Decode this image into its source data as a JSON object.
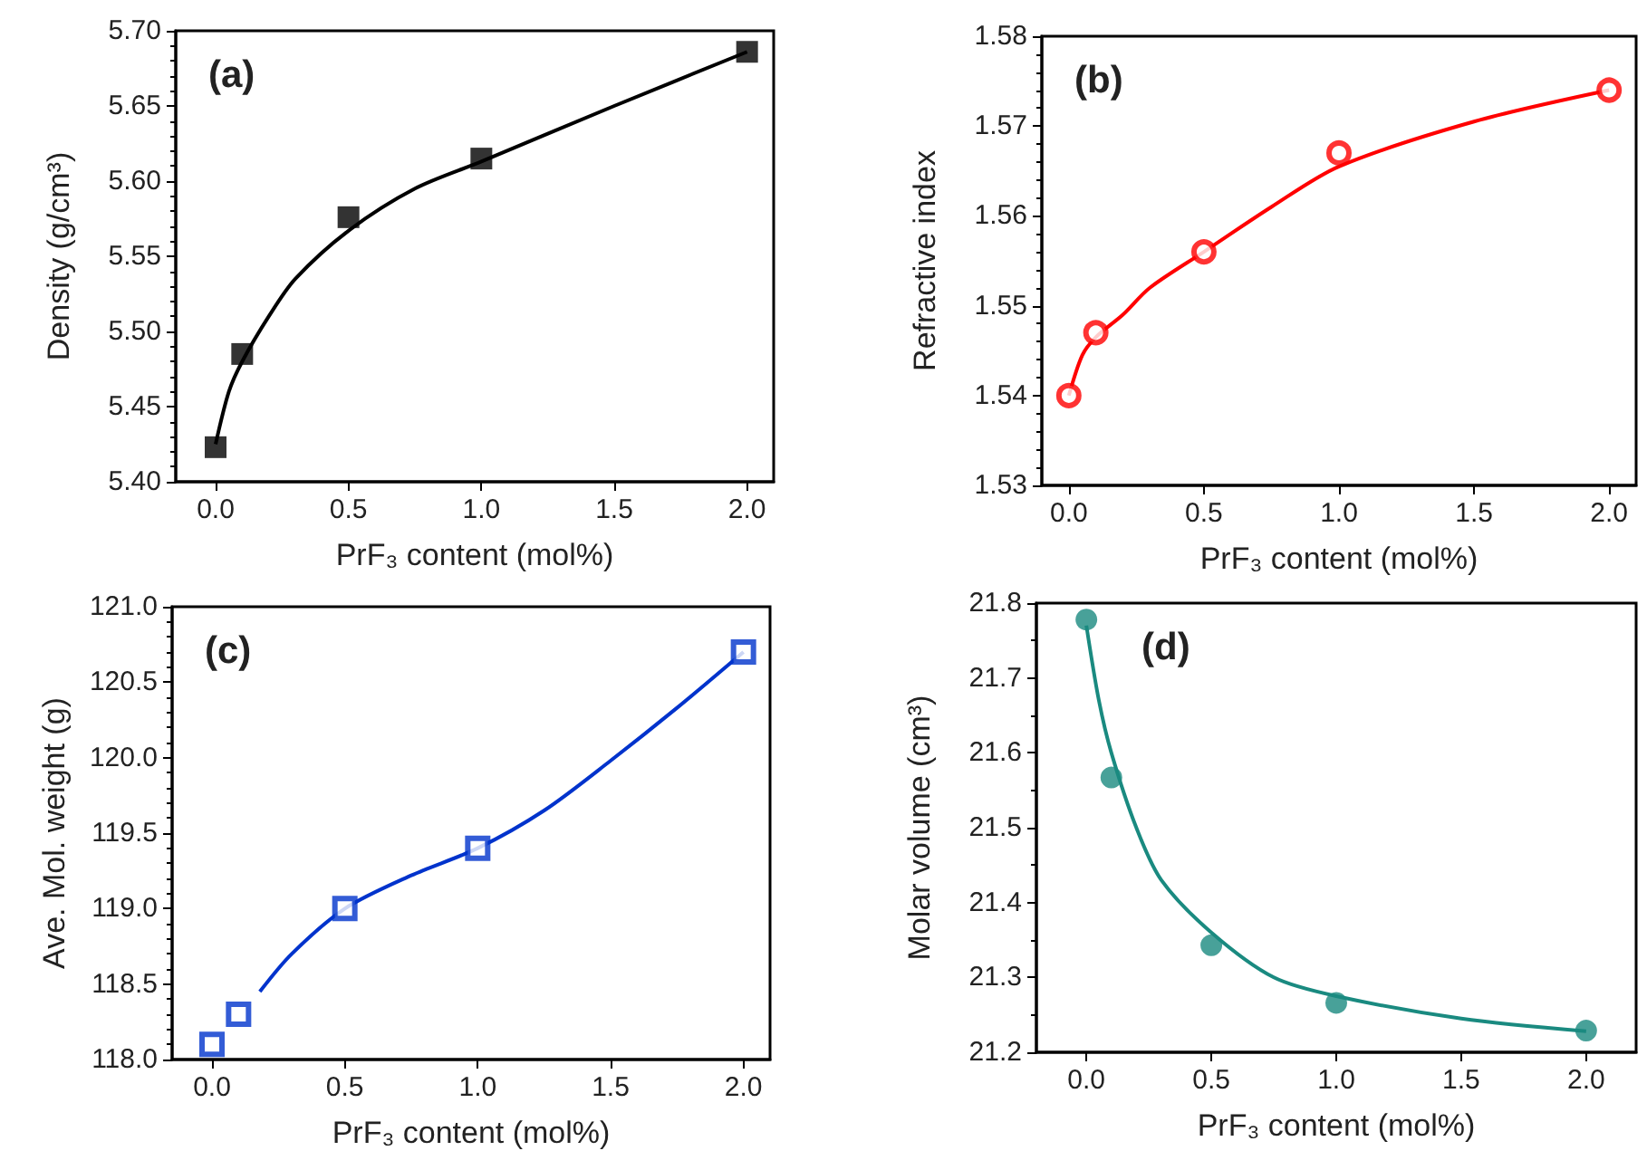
{
  "chart_data": [
    {
      "type": "scatter",
      "xlabel": "PrF₃ content (mol%)",
      "ylabel": "Density (g/cm³)",
      "annotations": [
        "(a)"
      ],
      "marker": "square",
      "grid": false,
      "xlim": [
        -0.15,
        2.1
      ],
      "xticks": [
        {
          "value": 0,
          "label": "0.0"
        },
        {
          "value": 0.5,
          "label": "0.5"
        },
        {
          "value": 1,
          "label": "1.0"
        },
        {
          "value": 1.5,
          "label": "1.5"
        },
        {
          "value": 2,
          "label": "2.0"
        }
      ],
      "ylim": [
        5.4,
        5.7
      ],
      "yticks": [
        {
          "value": 5.4,
          "label": "5.40"
        },
        {
          "value": 5.45,
          "label": "5.45"
        },
        {
          "value": 5.5,
          "label": "5.50"
        },
        {
          "value": 5.55,
          "label": "5.55"
        },
        {
          "value": 5.6,
          "label": "5.60"
        },
        {
          "value": 5.65,
          "label": "5.65"
        },
        {
          "value": 5.7,
          "label": "5.70"
        }
      ],
      "series": [
        {
          "color": "#000000",
          "x": [
            0,
            0.1,
            0.5,
            1,
            2
          ],
          "values": [
            5.423,
            5.485,
            5.576,
            5.615,
            5.686
          ]
        },
        {
          "type": "line",
          "marker": "none",
          "color": "#000000",
          "x": [
            0,
            0.05,
            0.1,
            0.2,
            0.3,
            0.5,
            0.75,
            1,
            1.5,
            2
          ],
          "values": [
            5.425,
            5.46,
            5.48,
            5.51,
            5.535,
            5.567,
            5.595,
            5.613,
            5.65,
            5.686
          ]
        }
      ]
    },
    {
      "type": "scatter",
      "xlabel": "PrF₃ content (mol%)",
      "ylabel": "Refractive index",
      "annotations": [
        "(b)"
      ],
      "marker": "circle",
      "grid": false,
      "xlim": [
        -0.1,
        2.1
      ],
      "xticks": [
        {
          "value": 0,
          "label": "0.0"
        },
        {
          "value": 0.5,
          "label": "0.5"
        },
        {
          "value": 1,
          "label": "1.0"
        },
        {
          "value": 1.5,
          "label": "1.5"
        },
        {
          "value": 2,
          "label": "2.0"
        }
      ],
      "ylim": [
        1.53,
        1.58
      ],
      "yticks": [
        1.53,
        1.54,
        1.55,
        1.56,
        1.57,
        1.58
      ],
      "series": [
        {
          "color": "#ff0000",
          "x": [
            0,
            0.1,
            0.5,
            1,
            2
          ],
          "values": [
            1.54,
            1.547,
            1.556,
            1.567,
            1.574
          ]
        },
        {
          "type": "line",
          "marker": "none",
          "color": "#ff0000",
          "x": [
            0,
            0.05,
            0.1,
            0.2,
            0.3,
            0.5,
            0.75,
            1,
            1.5,
            2
          ],
          "values": [
            1.54,
            1.5445,
            1.5465,
            1.549,
            1.552,
            1.556,
            1.561,
            1.5655,
            1.5705,
            1.574
          ]
        }
      ]
    },
    {
      "type": "scatter",
      "xlabel": "PrF₃ content (mol%)",
      "ylabel": "Ave. Mol. weight (g)",
      "annotations": [
        "(c)"
      ],
      "marker": "square",
      "grid": false,
      "xlim": [
        -0.15,
        2.1
      ],
      "xticks": [
        {
          "value": 0,
          "label": "0.0"
        },
        {
          "value": 0.5,
          "label": "0.5"
        },
        {
          "value": 1,
          "label": "1.0"
        },
        {
          "value": 1.5,
          "label": "1.5"
        },
        {
          "value": 2,
          "label": "2.0"
        }
      ],
      "ylim": [
        118,
        121
      ],
      "yticks": [
        {
          "value": 118,
          "label": "118.0"
        },
        {
          "value": 118.5,
          "label": "118.5"
        },
        {
          "value": 119,
          "label": "119.0"
        },
        {
          "value": 119.5,
          "label": "119.5"
        },
        {
          "value": 120,
          "label": "120.0"
        },
        {
          "value": 120.5,
          "label": "120.5"
        },
        {
          "value": 121,
          "label": "121.0"
        }
      ],
      "series": [
        {
          "color": "#0033cc",
          "x": [
            0,
            0.1,
            0.5,
            1,
            2
          ],
          "values": [
            118.1,
            118.3,
            119.0,
            119.4,
            120.7
          ]
        },
        {
          "type": "line",
          "marker": "none",
          "color": "#0033cc",
          "x": [
            0.18,
            0.3,
            0.5,
            0.75,
            1,
            1.25,
            1.5,
            1.75,
            2
          ],
          "values": [
            118.45,
            118.7,
            119.0,
            119.22,
            119.4,
            119.65,
            119.98,
            120.33,
            120.7
          ]
        }
      ]
    },
    {
      "type": "scatter",
      "xlabel": "PrF₃ content (mol%)",
      "ylabel": "Molar volume (cm³)",
      "annotations": [
        "(d)"
      ],
      "marker": "circle",
      "grid": false,
      "xlim": [
        -0.2,
        2.2
      ],
      "xticks": [
        {
          "value": 0,
          "label": "0.0"
        },
        {
          "value": 0.5,
          "label": "0.5"
        },
        {
          "value": 1,
          "label": "1.0"
        },
        {
          "value": 1.5,
          "label": "1.5"
        },
        {
          "value": 2,
          "label": "2.0"
        }
      ],
      "ylim": [
        21.2,
        21.8
      ],
      "yticks": [
        21.2,
        21.3,
        21.4,
        21.5,
        21.6,
        21.7,
        21.8
      ],
      "series": [
        {
          "color": "#1a8a80",
          "x": [
            0,
            0.1,
            0.5,
            1,
            2
          ],
          "values": [
            21.778,
            21.567,
            21.343,
            21.266,
            21.229
          ]
        },
        {
          "type": "line",
          "marker": "none",
          "color": "#1a8a80",
          "x": [
            0,
            0.05,
            0.1,
            0.2,
            0.3,
            0.5,
            0.75,
            1,
            1.5,
            2
          ],
          "values": [
            21.77,
            21.67,
            21.6,
            21.5,
            21.43,
            21.36,
            21.3,
            21.275,
            21.245,
            21.228
          ]
        }
      ]
    }
  ]
}
